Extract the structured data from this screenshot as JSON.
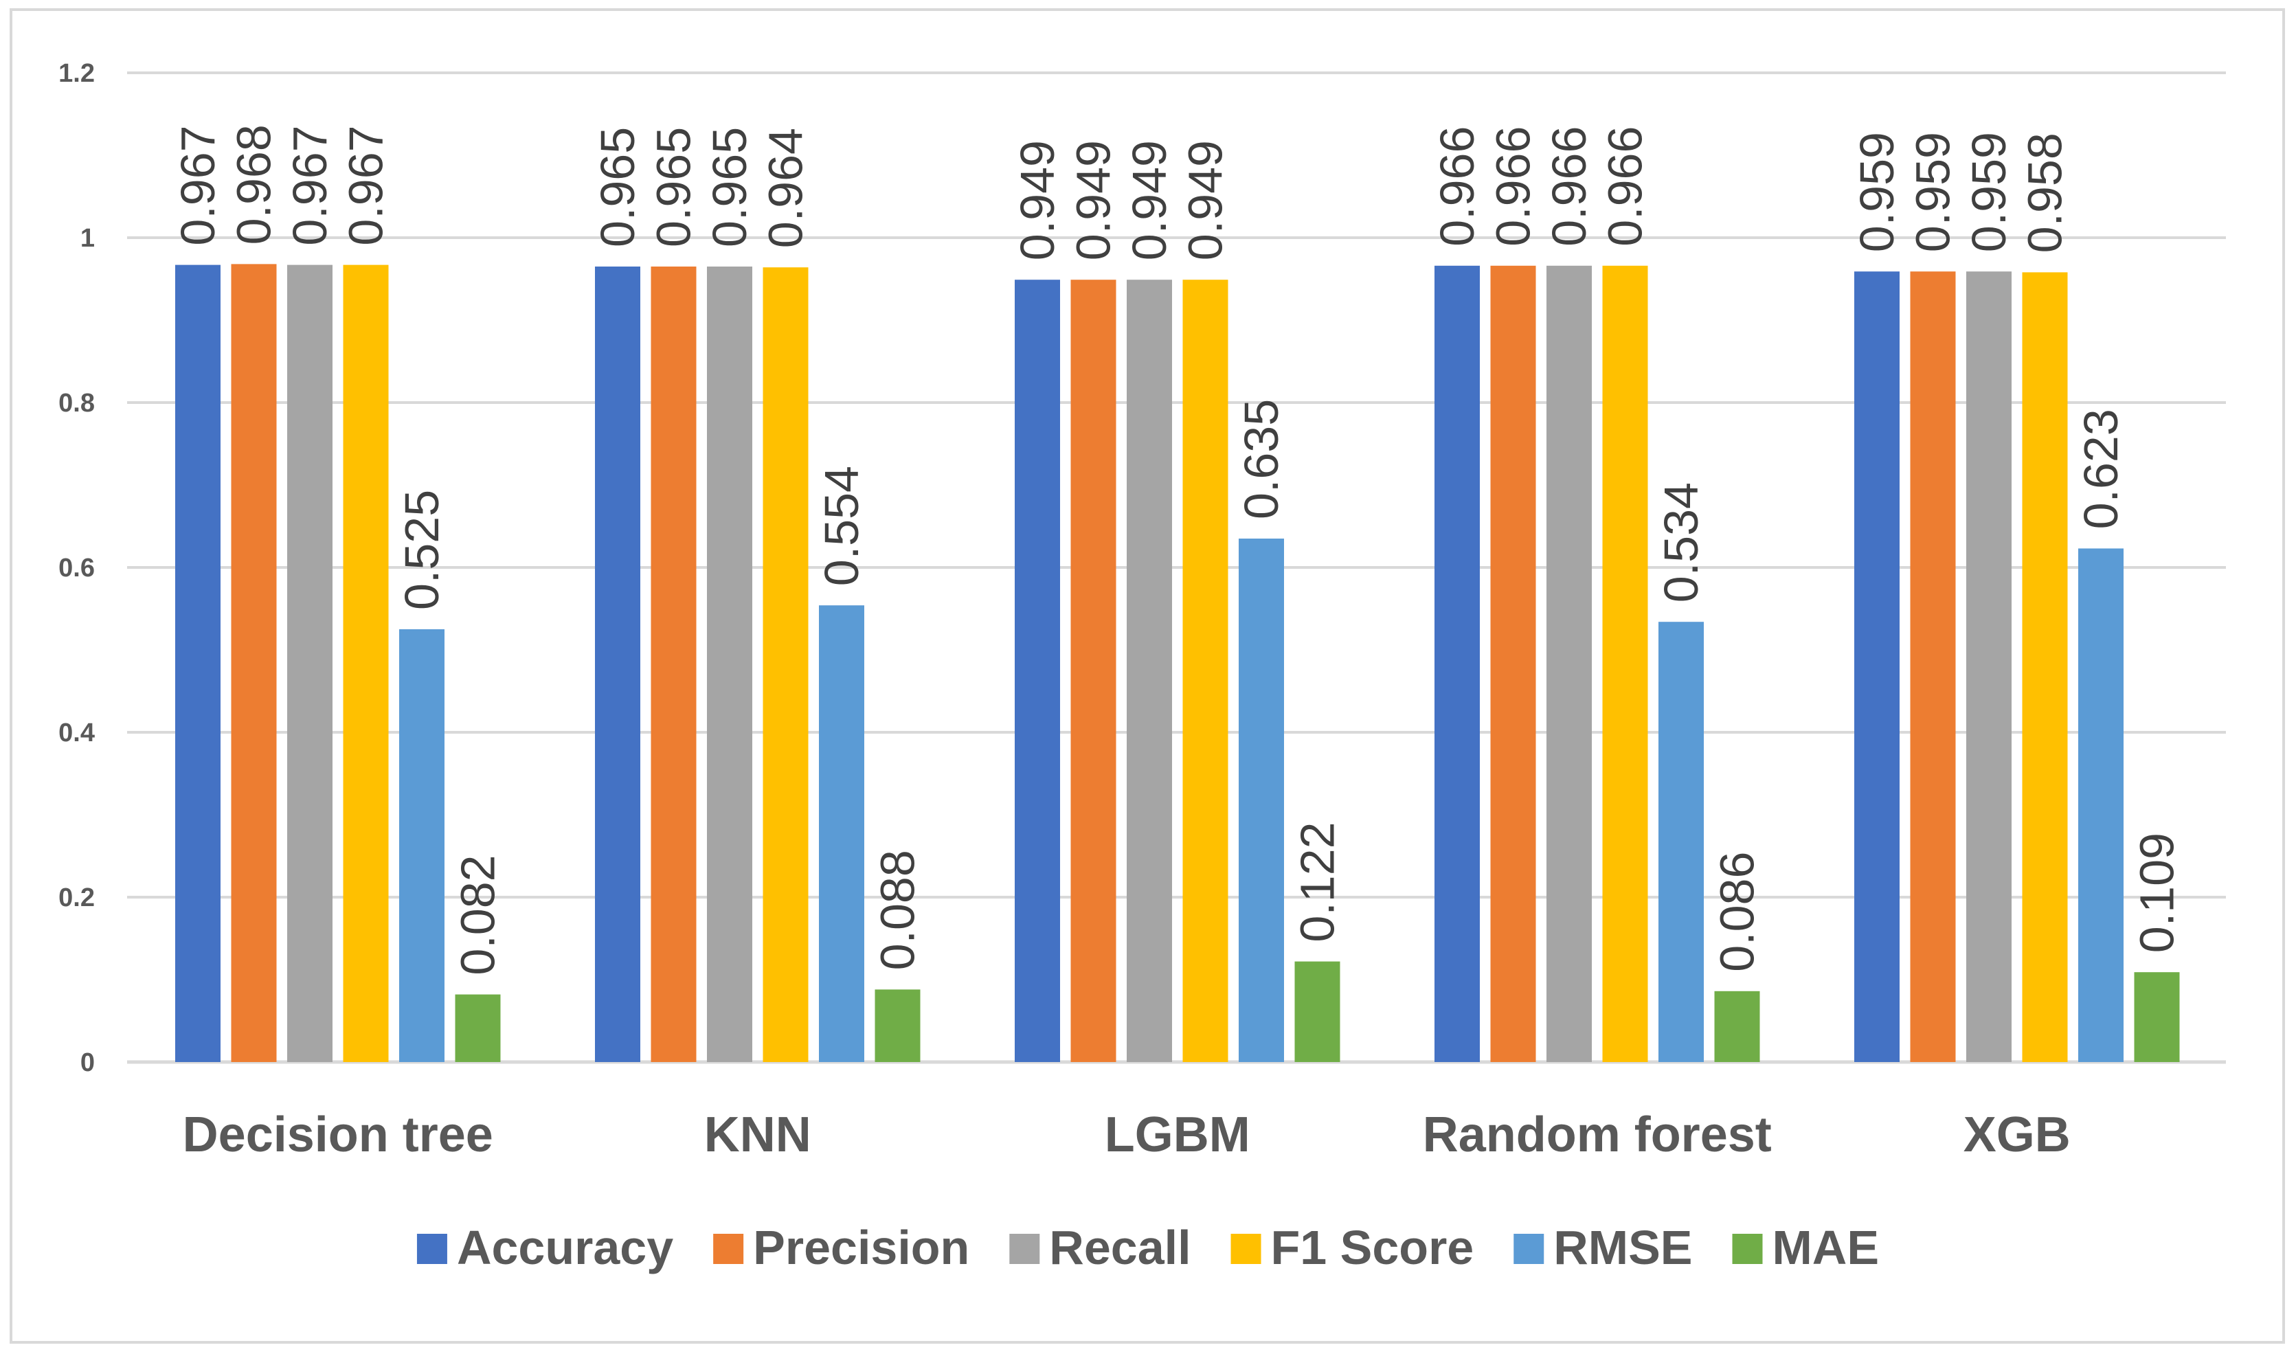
{
  "chart_data": {
    "type": "bar",
    "title": "",
    "xlabel": "",
    "ylabel": "",
    "ylim": [
      0,
      1.2
    ],
    "yticks": [
      0,
      0.2,
      0.4,
      0.6,
      0.8,
      1,
      1.2
    ],
    "ytick_labels": [
      "0",
      "0.2",
      "0.4",
      "0.6",
      "0.8",
      "1",
      "1.2"
    ],
    "grid": true,
    "legend_position": "bottom",
    "categories": [
      "Decision tree",
      "KNN",
      "LGBM",
      "Random forest",
      "XGB"
    ],
    "series": [
      {
        "name": "Accuracy",
        "color": "#4472c4",
        "values": [
          0.967,
          0.965,
          0.949,
          0.966,
          0.959
        ],
        "labels": [
          "0.967",
          "0.965",
          "0.949",
          "0.966",
          "0.959"
        ]
      },
      {
        "name": "Precision",
        "color": "#ed7d31",
        "values": [
          0.968,
          0.965,
          0.949,
          0.966,
          0.959
        ],
        "labels": [
          "0.968",
          "0.965",
          "0.949",
          "0.966",
          "0.959"
        ]
      },
      {
        "name": "Recall",
        "color": "#a5a5a5",
        "values": [
          0.967,
          0.965,
          0.949,
          0.966,
          0.959
        ],
        "labels": [
          "0.967",
          "0.965",
          "0.949",
          "0.966",
          "0.959"
        ]
      },
      {
        "name": "F1 Score",
        "color": "#ffc000",
        "values": [
          0.967,
          0.964,
          0.949,
          0.966,
          0.958
        ],
        "labels": [
          "0.967",
          "0.964",
          "0.949",
          "0.966",
          "0.958"
        ]
      },
      {
        "name": "RMSE",
        "color": "#5b9bd5",
        "values": [
          0.525,
          0.554,
          0.635,
          0.534,
          0.623
        ],
        "labels": [
          "0.525",
          "0.554",
          "0.635",
          "0.534",
          "0.623"
        ]
      },
      {
        "name": "MAE",
        "color": "#70ad47",
        "values": [
          0.082,
          0.088,
          0.122,
          0.086,
          0.109
        ],
        "labels": [
          "0.082",
          "0.088",
          "0.122",
          "0.086",
          "0.109"
        ]
      }
    ]
  }
}
